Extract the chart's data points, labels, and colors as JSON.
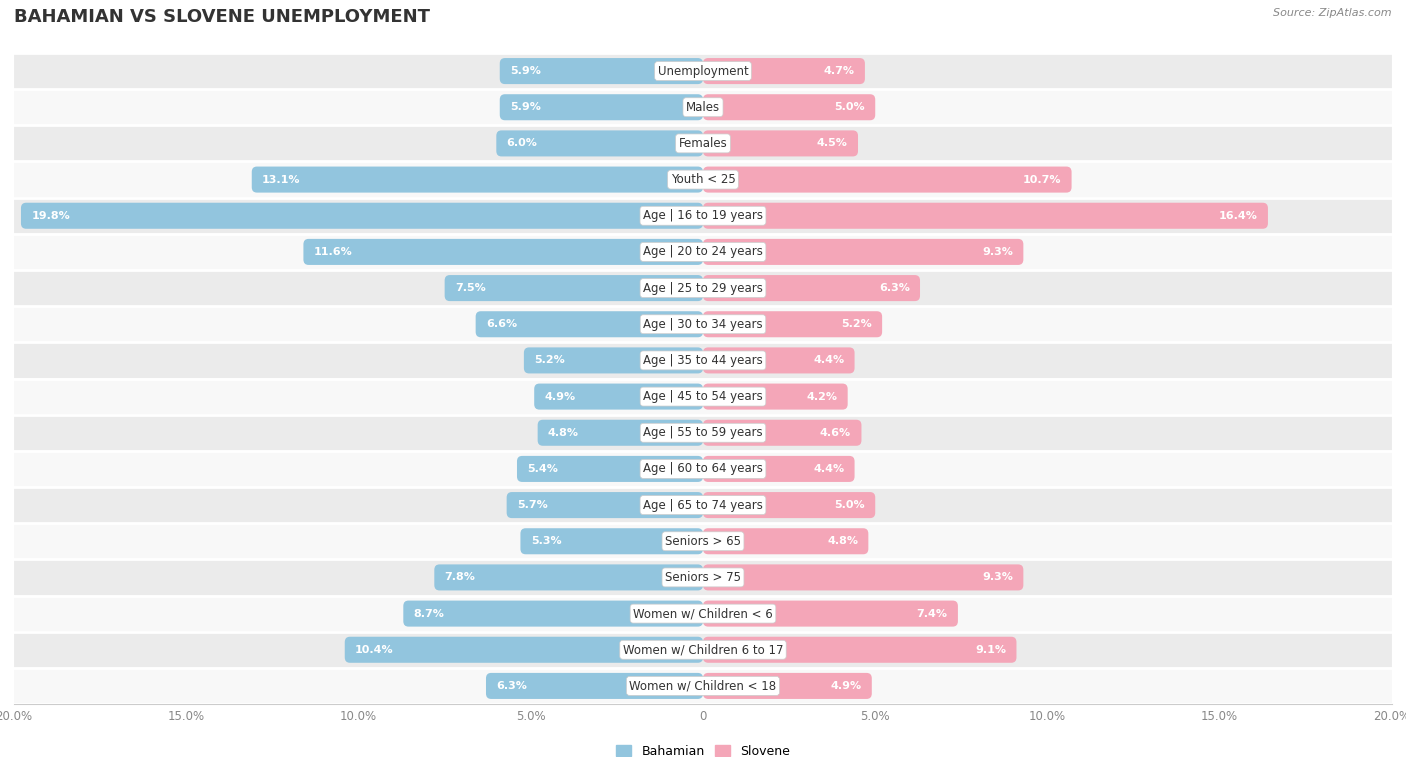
{
  "title": "BAHAMIAN VS SLOVENE UNEMPLOYMENT",
  "source": "Source: ZipAtlas.com",
  "categories": [
    "Unemployment",
    "Males",
    "Females",
    "Youth < 25",
    "Age | 16 to 19 years",
    "Age | 20 to 24 years",
    "Age | 25 to 29 years",
    "Age | 30 to 34 years",
    "Age | 35 to 44 years",
    "Age | 45 to 54 years",
    "Age | 55 to 59 years",
    "Age | 60 to 64 years",
    "Age | 65 to 74 years",
    "Seniors > 65",
    "Seniors > 75",
    "Women w/ Children < 6",
    "Women w/ Children 6 to 17",
    "Women w/ Children < 18"
  ],
  "bahamian": [
    5.9,
    5.9,
    6.0,
    13.1,
    19.8,
    11.6,
    7.5,
    6.6,
    5.2,
    4.9,
    4.8,
    5.4,
    5.7,
    5.3,
    7.8,
    8.7,
    10.4,
    6.3
  ],
  "slovene": [
    4.7,
    5.0,
    4.5,
    10.7,
    16.4,
    9.3,
    6.3,
    5.2,
    4.4,
    4.2,
    4.6,
    4.4,
    5.0,
    4.8,
    9.3,
    7.4,
    9.1,
    4.9
  ],
  "bahamian_color": "#92c5de",
  "slovene_color": "#f4a6b8",
  "row_bg_light": "#ebebeb",
  "row_bg_white": "#f8f8f8",
  "axis_max": 20.0,
  "legend_bahamian": "Bahamian",
  "legend_slovene": "Slovene",
  "title_fontsize": 13,
  "label_fontsize": 8.5,
  "value_fontsize": 8.0,
  "tick_fontsize": 8.5
}
